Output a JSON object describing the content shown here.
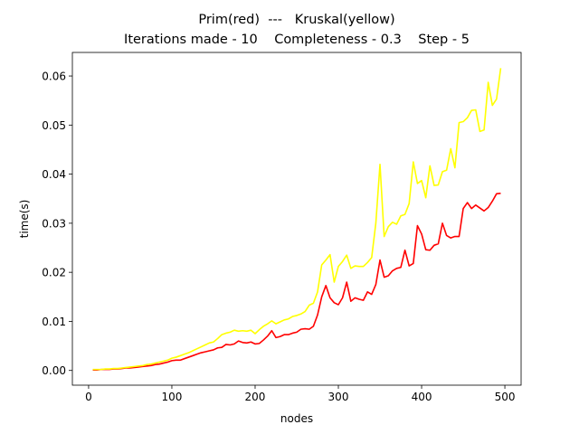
{
  "chart_data": {
    "type": "line",
    "title": [
      "Prim(red)  ---   Kruskal(yellow)",
      "Iterations made - 10    Completeness - 0.3    Step - 5"
    ],
    "xlabel": "nodes",
    "ylabel": "time(s)",
    "x": [
      5,
      10,
      15,
      20,
      25,
      30,
      35,
      40,
      45,
      50,
      55,
      60,
      65,
      70,
      75,
      80,
      85,
      90,
      95,
      100,
      105,
      110,
      115,
      120,
      125,
      130,
      135,
      140,
      145,
      150,
      155,
      160,
      165,
      170,
      175,
      180,
      185,
      190,
      195,
      200,
      205,
      210,
      215,
      220,
      225,
      230,
      235,
      240,
      245,
      250,
      255,
      260,
      265,
      270,
      275,
      280,
      285,
      290,
      295,
      300,
      305,
      310,
      315,
      320,
      325,
      330,
      335,
      340,
      345,
      350,
      355,
      360,
      365,
      370,
      375,
      380,
      385,
      390,
      395,
      400,
      405,
      410,
      415,
      420,
      425,
      430,
      435,
      440,
      445,
      450,
      455,
      460,
      465,
      470,
      475,
      480,
      485,
      490,
      495
    ],
    "series": [
      {
        "name": "Prim",
        "color": "#ff0000",
        "values": [
          0.0001,
          0.0001,
          0.0002,
          0.0002,
          0.0002,
          0.0003,
          0.0003,
          0.0004,
          0.0005,
          0.0005,
          0.0006,
          0.0007,
          0.0008,
          0.0009,
          0.001,
          0.0012,
          0.0013,
          0.0015,
          0.0017,
          0.002,
          0.0021,
          0.0021,
          0.0024,
          0.0027,
          0.003,
          0.0033,
          0.0036,
          0.0038,
          0.004,
          0.0042,
          0.0046,
          0.0047,
          0.0053,
          0.0052,
          0.0054,
          0.006,
          0.0057,
          0.0056,
          0.0058,
          0.0054,
          0.0055,
          0.0062,
          0.007,
          0.0081,
          0.0067,
          0.0069,
          0.0073,
          0.0073,
          0.0076,
          0.0078,
          0.0084,
          0.0085,
          0.0084,
          0.009,
          0.0113,
          0.015,
          0.0173,
          0.0148,
          0.0138,
          0.0134,
          0.0148,
          0.018,
          0.0141,
          0.0148,
          0.0145,
          0.0143,
          0.016,
          0.0155,
          0.0175,
          0.0225,
          0.019,
          0.0193,
          0.0203,
          0.0208,
          0.021,
          0.0245,
          0.0213,
          0.0218,
          0.0295,
          0.0278,
          0.0246,
          0.0245,
          0.0255,
          0.0258,
          0.03,
          0.0275,
          0.027,
          0.0273,
          0.0273,
          0.033,
          0.0342,
          0.033,
          0.0337,
          0.0331,
          0.0325,
          0.0332,
          0.0345,
          0.036,
          0.0361
        ]
      },
      {
        "name": "Kruskal",
        "color": "#ffff00",
        "values": [
          0.0002,
          0.0002,
          0.0002,
          0.0003,
          0.0003,
          0.0004,
          0.0004,
          0.0005,
          0.0006,
          0.0007,
          0.0008,
          0.0009,
          0.001,
          0.0012,
          0.0013,
          0.0015,
          0.0017,
          0.0019,
          0.0021,
          0.0025,
          0.0027,
          0.003,
          0.0033,
          0.0036,
          0.004,
          0.0044,
          0.0048,
          0.0052,
          0.0056,
          0.0058,
          0.0065,
          0.0073,
          0.0076,
          0.0078,
          0.0082,
          0.008,
          0.0081,
          0.008,
          0.0082,
          0.0075,
          0.0083,
          0.009,
          0.0095,
          0.0101,
          0.0095,
          0.0099,
          0.0103,
          0.0105,
          0.011,
          0.0112,
          0.0115,
          0.012,
          0.0133,
          0.0137,
          0.016,
          0.0215,
          0.0225,
          0.0236,
          0.018,
          0.0212,
          0.0222,
          0.0235,
          0.0208,
          0.0213,
          0.0212,
          0.0212,
          0.022,
          0.023,
          0.03,
          0.042,
          0.0273,
          0.0293,
          0.0302,
          0.0298,
          0.0315,
          0.0318,
          0.034,
          0.0425,
          0.0381,
          0.0387,
          0.0352,
          0.0417,
          0.0377,
          0.0378,
          0.0405,
          0.0408,
          0.0452,
          0.0413,
          0.0505,
          0.0507,
          0.0515,
          0.053,
          0.0531,
          0.0487,
          0.049,
          0.0587,
          0.054,
          0.0553,
          0.0616
        ]
      }
    ],
    "xlim": [
      -19.5,
      519.5
    ],
    "xticks": [
      0,
      100,
      200,
      300,
      400,
      500
    ],
    "ylim": [
      -0.003,
      0.0648
    ],
    "yticks": [
      {
        "value": 0,
        "label": "0.00"
      },
      0.01,
      0.02,
      0.03,
      0.04,
      0.05,
      0.06
    ],
    "grid": false
  }
}
